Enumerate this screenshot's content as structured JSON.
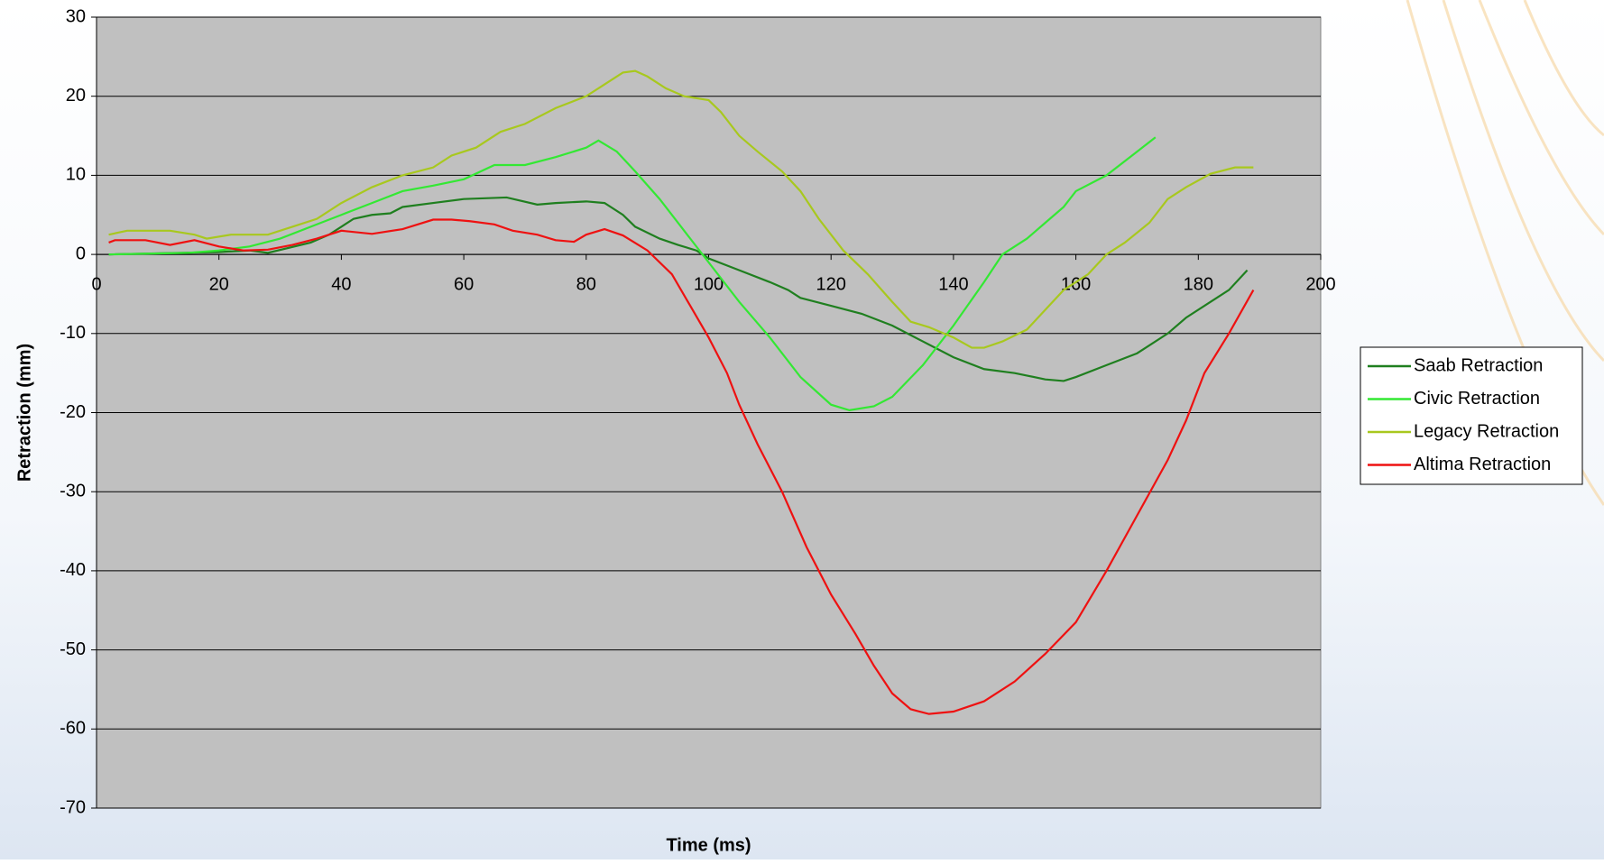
{
  "chart_data": {
    "type": "line",
    "xlabel": "Time (ms)",
    "ylabel": "Retraction (mm)",
    "xlim": [
      0,
      200
    ],
    "xticks": [
      0,
      20,
      40,
      60,
      80,
      100,
      120,
      140,
      160,
      180,
      200
    ],
    "ylim": [
      -70,
      30
    ],
    "yticks": [
      -70,
      -60,
      -50,
      -40,
      -30,
      -20,
      -10,
      0,
      10,
      20,
      30
    ],
    "grid": true,
    "legend": "right",
    "series": [
      {
        "name": "Saab Retraction",
        "color": "#1f7f1f",
        "x": [
          2,
          20,
          25,
          28,
          35,
          38,
          42,
          45,
          48,
          50,
          55,
          60,
          67,
          72,
          75,
          80,
          83,
          86,
          88,
          92,
          95,
          98,
          100,
          105,
          110,
          113,
          115,
          120,
          125,
          130,
          135,
          140,
          145,
          150,
          155,
          158,
          160,
          165,
          170,
          175,
          178,
          182,
          185,
          188
        ],
        "values": [
          0,
          0.3,
          0.5,
          0.2,
          1.5,
          2.5,
          4.5,
          5,
          5.2,
          6,
          6.5,
          7,
          7.2,
          6.3,
          6.5,
          6.7,
          6.5,
          5,
          3.5,
          2,
          1.2,
          0.5,
          -0.5,
          -2,
          -3.5,
          -4.5,
          -5.5,
          -6.5,
          -7.5,
          -9,
          -11,
          -13,
          -14.5,
          -15,
          -15.8,
          -16,
          -15.5,
          -14,
          -12.5,
          -10,
          -8,
          -6,
          -4.5,
          -2
        ]
      },
      {
        "name": "Civic Retraction",
        "color": "#33e833",
        "x": [
          2,
          15,
          20,
          25,
          30,
          35,
          40,
          45,
          50,
          55,
          60,
          65,
          70,
          75,
          80,
          82,
          85,
          88,
          92,
          96,
          100,
          105,
          110,
          115,
          120,
          123,
          127,
          130,
          135,
          140,
          145,
          148,
          152,
          155,
          158,
          160,
          165,
          170,
          173
        ],
        "values": [
          0,
          0.2,
          0.5,
          1,
          2,
          3.5,
          5,
          6.5,
          8,
          8.7,
          9.5,
          11.3,
          11.3,
          12.3,
          13.5,
          14.4,
          13,
          10.5,
          7,
          3,
          -1,
          -6,
          -10.5,
          -15.5,
          -19,
          -19.7,
          -19.2,
          -18,
          -14,
          -9,
          -3.5,
          0,
          2,
          4,
          6,
          8,
          10,
          13,
          14.8
        ]
      },
      {
        "name": "Legacy Retraction",
        "color": "#a8c81e",
        "x": [
          2,
          5,
          12,
          16,
          18,
          22,
          28,
          32,
          36,
          40,
          45,
          50,
          55,
          58,
          62,
          66,
          70,
          75,
          80,
          83,
          86,
          88,
          90,
          93,
          96,
          100,
          102,
          105,
          108,
          112,
          115,
          118,
          122,
          126,
          130,
          133,
          136,
          140,
          143,
          145,
          148,
          152,
          155,
          158,
          162,
          165,
          168,
          172,
          175,
          178,
          182,
          186,
          189
        ],
        "values": [
          2.5,
          3,
          3,
          2.5,
          2,
          2.5,
          2.5,
          3.5,
          4.5,
          6.5,
          8.5,
          10,
          11,
          12.5,
          13.5,
          15.5,
          16.5,
          18.5,
          20,
          21.5,
          23,
          23.2,
          22.5,
          21,
          20,
          19.5,
          18,
          15,
          13,
          10.5,
          8,
          4.5,
          0.5,
          -2.5,
          -6,
          -8.5,
          -9.2,
          -10.5,
          -11.8,
          -11.8,
          -11,
          -9.5,
          -7,
          -4.5,
          -2.5,
          0,
          1.5,
          4,
          7,
          8.5,
          10.2,
          11,
          11
        ]
      },
      {
        "name": "Altima Retraction",
        "color": "#ee1111",
        "x": [
          2,
          3,
          8,
          12,
          16,
          20,
          24,
          28,
          32,
          36,
          40,
          45,
          50,
          55,
          58,
          61,
          65,
          68,
          72,
          75,
          78,
          80,
          83,
          86,
          90,
          94,
          97,
          100,
          103,
          105,
          108,
          112,
          116,
          120,
          124,
          127,
          130,
          133,
          136,
          140,
          145,
          150,
          155,
          160,
          165,
          170,
          175,
          178,
          181,
          185,
          189
        ],
        "values": [
          1.5,
          1.8,
          1.8,
          1.2,
          1.8,
          1,
          0.5,
          0.6,
          1.2,
          2,
          3,
          2.6,
          3.2,
          4.4,
          4.4,
          4.2,
          3.8,
          3,
          2.5,
          1.8,
          1.6,
          2.5,
          3.2,
          2.4,
          0.5,
          -2.5,
          -6.5,
          -10.5,
          -15,
          -19,
          -24,
          -30,
          -37,
          -43,
          -48,
          -52,
          -55.5,
          -57.5,
          -58.1,
          -57.8,
          -56.5,
          -54,
          -50.5,
          -46.5,
          -40,
          -33,
          -26,
          -21,
          -15,
          -10,
          -4.5
        ]
      }
    ]
  }
}
